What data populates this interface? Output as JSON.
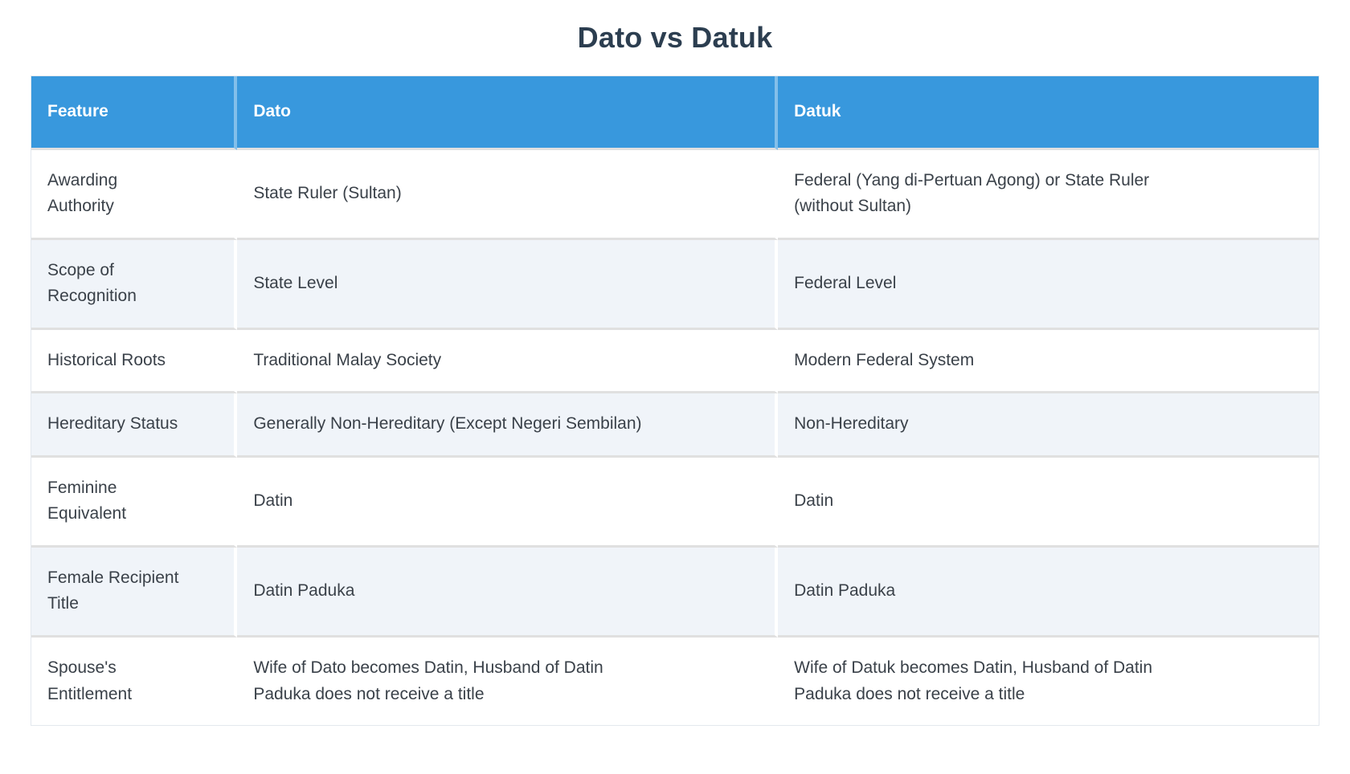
{
  "page": {
    "title": "Dato vs Datuk"
  },
  "colors": {
    "header_bg": "#3898dd",
    "header_text": "#ffffff",
    "stripe_bg": "#f0f4f9",
    "row_separator": "#e0e0e0",
    "title_color": "#2c3e50",
    "body_text": "#3a4149"
  },
  "table": {
    "columns": [
      "Feature",
      "Dato",
      "Datuk"
    ],
    "rows": [
      {
        "feature": "Awarding\nAuthority",
        "dato": "State Ruler (Sultan)",
        "datuk": "Federal (Yang di-Pertuan Agong) or State Ruler\n(without Sultan)"
      },
      {
        "feature": "Scope of\nRecognition",
        "dato": "State Level",
        "datuk": "Federal Level"
      },
      {
        "feature": "Historical Roots",
        "dato": "Traditional Malay Society",
        "datuk": "Modern Federal System"
      },
      {
        "feature": "Hereditary Status",
        "dato": "Generally Non-Hereditary (Except Negeri Sembilan)",
        "datuk": "Non-Hereditary"
      },
      {
        "feature": "Feminine\nEquivalent",
        "dato": "Datin",
        "datuk": "Datin"
      },
      {
        "feature": "Female Recipient\nTitle",
        "dato": "Datin Paduka",
        "datuk": "Datin Paduka"
      },
      {
        "feature": "Spouse's\nEntitlement",
        "dato": "Wife of Dato becomes Datin, Husband of Datin\nPaduka does not receive a title",
        "datuk": "Wife of Datuk becomes Datin, Husband of Datin\nPaduka does not receive a title"
      }
    ]
  }
}
